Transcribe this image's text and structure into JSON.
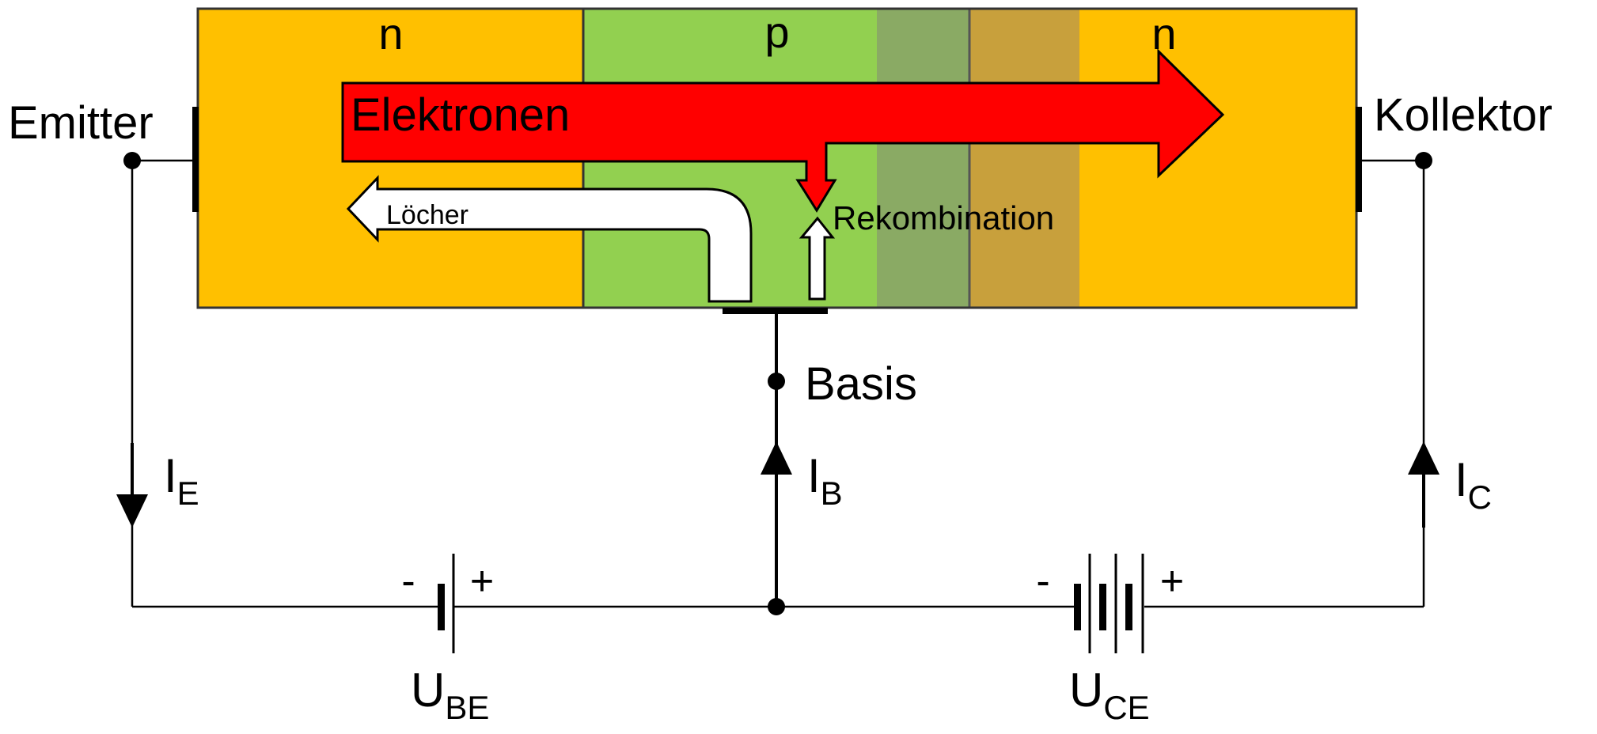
{
  "diagram": {
    "regions": {
      "emitter_type": "n",
      "base_type": "p",
      "collector_type": "n"
    },
    "arrows": {
      "electrons": "Elektronen",
      "holes": "Löcher",
      "recombination": "Rekombination"
    },
    "terminals": {
      "emitter": "Emitter",
      "collector": "Kollektor",
      "base": "Basis"
    },
    "currents": {
      "emitter": {
        "main": "I",
        "sub": "E"
      },
      "base": {
        "main": "I",
        "sub": "B"
      },
      "collector": {
        "main": "I",
        "sub": "C"
      }
    },
    "sources": {
      "ube": {
        "main": "U",
        "sub": "BE",
        "minus": "-",
        "plus": "+"
      },
      "uce": {
        "main": "U",
        "sub": "CE",
        "minus": "-",
        "plus": "+"
      }
    },
    "colors": {
      "n_region": "#FFC000",
      "p_region": "#92D050",
      "depletion_base": "#8AAA64",
      "depletion_collector": "#C8A03C",
      "electron_arrow": "#FF0000",
      "hole_arrow": "#FFFFFF"
    }
  }
}
